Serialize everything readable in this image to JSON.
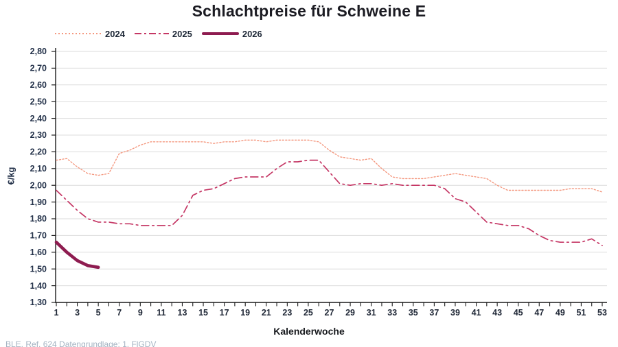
{
  "title": "Schlachtpreise für Schweine E",
  "source_note": "BLE, Ref. 624 Datengrundlage: 1. FlGDV",
  "colors": {
    "series_2024": "#F4977E",
    "series_2025": "#C53765",
    "series_2026": "#8E1C50",
    "grid": "#DBDBDB",
    "axis": "#1a1a1a",
    "tick_text": "#24324a",
    "title_text": "#1b1b22",
    "source_text": "#a4b3c2"
  },
  "chart_data": {
    "type": "line",
    "title": "Schlachtpreise für Schweine E",
    "xlabel": "Kalenderwoche",
    "ylabel": "€/kg",
    "xlim": [
      1,
      53
    ],
    "ylim": [
      1.3,
      2.8
    ],
    "grid": "horizontal",
    "legend_position": "top-left",
    "decimal_format": "comma",
    "yticks": [
      2.8,
      2.7,
      2.6,
      2.5,
      2.4,
      2.3,
      2.2,
      2.1,
      2.0,
      1.9,
      1.8,
      1.7,
      1.6,
      1.5,
      1.4,
      1.3
    ],
    "ytick_labels": [
      "2,80",
      "2,70",
      "2,60",
      "2,50",
      "2,40",
      "2,30",
      "2,20",
      "2,10",
      "2,00",
      "1,90",
      "1,80",
      "1,70",
      "1,60",
      "1,50",
      "1,40",
      "1,30"
    ],
    "xticks": [
      1,
      3,
      5,
      7,
      9,
      11,
      13,
      15,
      17,
      19,
      21,
      23,
      25,
      27,
      29,
      31,
      33,
      35,
      37,
      39,
      41,
      43,
      45,
      47,
      49,
      51,
      53
    ],
    "minor_xtick_every_week": true,
    "series": [
      {
        "name": "2024",
        "color": "#F4977E",
        "line_style": "dotted",
        "start_week": 1,
        "values": [
          2.15,
          2.16,
          2.11,
          2.07,
          2.06,
          2.07,
          2.19,
          2.21,
          2.24,
          2.26,
          2.26,
          2.26,
          2.26,
          2.26,
          2.26,
          2.25,
          2.26,
          2.26,
          2.27,
          2.27,
          2.26,
          2.27,
          2.27,
          2.27,
          2.27,
          2.26,
          2.21,
          2.17,
          2.16,
          2.15,
          2.16,
          2.1,
          2.05,
          2.04,
          2.04,
          2.04,
          2.05,
          2.06,
          2.07,
          2.06,
          2.05,
          2.04,
          2.0,
          1.97,
          1.97,
          1.97,
          1.97,
          1.97,
          1.97,
          1.98,
          1.98,
          1.98,
          1.96
        ]
      },
      {
        "name": "2025",
        "color": "#C53765",
        "line_style": "dashdot",
        "start_week": 1,
        "values": [
          1.97,
          1.91,
          1.85,
          1.8,
          1.78,
          1.78,
          1.77,
          1.77,
          1.76,
          1.76,
          1.76,
          1.76,
          1.82,
          1.94,
          1.97,
          1.98,
          2.01,
          2.04,
          2.05,
          2.05,
          2.05,
          2.1,
          2.14,
          2.14,
          2.15,
          2.15,
          2.08,
          2.01,
          2.0,
          2.01,
          2.01,
          2.0,
          2.01,
          2.0,
          2.0,
          2.0,
          2.0,
          1.98,
          1.92,
          1.9,
          1.84,
          1.78,
          1.77,
          1.76,
          1.76,
          1.74,
          1.7,
          1.67,
          1.66,
          1.66,
          1.66,
          1.68,
          1.64
        ]
      },
      {
        "name": "2026",
        "color": "#8E1C50",
        "line_style": "solid_thick",
        "start_week": 1,
        "values": [
          1.66,
          1.6,
          1.55,
          1.52,
          1.51
        ]
      }
    ]
  }
}
